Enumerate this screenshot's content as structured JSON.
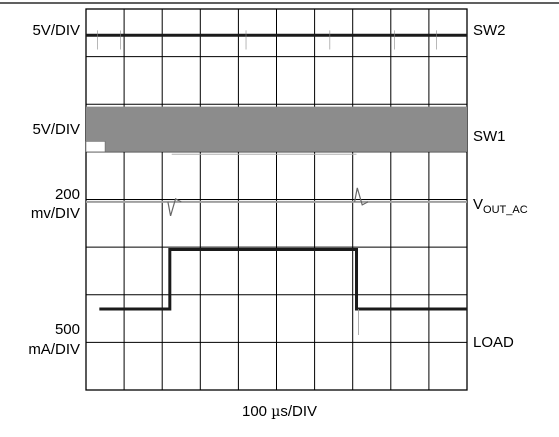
{
  "chart_data": {
    "type": "line",
    "grid": true,
    "x_divisions": 10,
    "y_divisions": 8,
    "xlabel": "100 µs/DIV",
    "xlabel_parts": {
      "value": "100 ",
      "unit_prefix": "µ",
      "unit_rest": "s/DIV"
    },
    "channels": [
      {
        "name": "SW2",
        "scale": "5V/DIV",
        "scale_line1": "5V/DIV",
        "scale_line2": ""
      },
      {
        "name": "SW1",
        "scale": "5V/DIV",
        "scale_line1": "5V/DIV",
        "scale_line2": ""
      },
      {
        "name": "VOUT_AC",
        "name_main": "V",
        "name_sub": "OUT_AC",
        "scale": "200 mv/DIV",
        "scale_line1": "200",
        "scale_line2": "mv/DIV"
      },
      {
        "name": "LOAD",
        "scale": "500 mA/DIV",
        "scale_line1": "500",
        "scale_line2": "mA/DIV"
      }
    ],
    "load_step": {
      "t_rise_div": 2.2,
      "t_fall_div": 7.1,
      "low_level_div": 6.3,
      "high_level_div": 5.05
    }
  },
  "colors": {
    "trace": "#1a1a1a",
    "switching_band": "#8c8c8c",
    "grid": "#000000",
    "vout_trace": "#a0a0a0"
  }
}
